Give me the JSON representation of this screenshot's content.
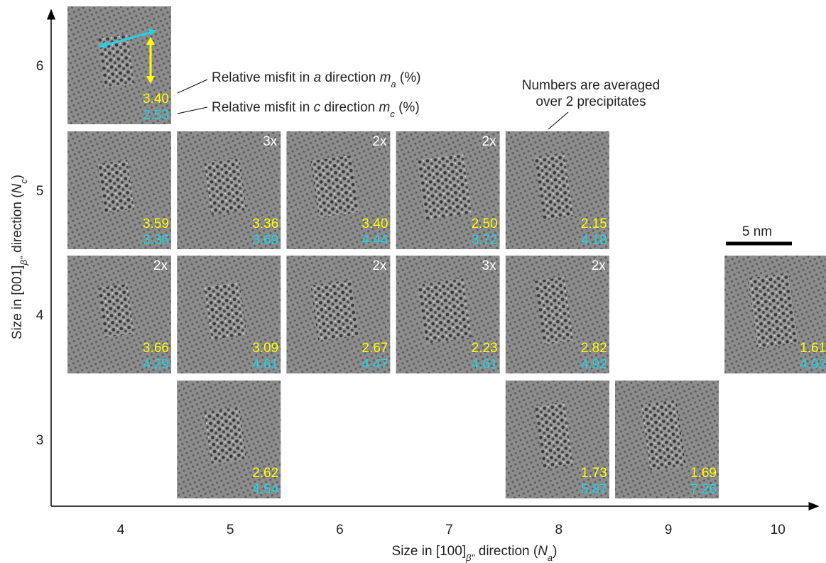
{
  "y_axis": {
    "ticks": [
      "6",
      "5",
      "4",
      "3"
    ],
    "label": {
      "text1": "Size in [001]",
      "sub1": "β''",
      "text2": " direction (",
      "var": "N",
      "sub2": "c",
      "text3": ")"
    }
  },
  "x_axis": {
    "ticks": [
      "4",
      "5",
      "6",
      "7",
      "8",
      "9",
      "10"
    ],
    "label": {
      "text1": "Size in [100]",
      "sub1": "β''",
      "text2": " direction (",
      "var": "N",
      "sub2": "a",
      "text3": ")"
    }
  },
  "grid": {
    "rows": [
      {
        "cells": [
          {
            "m_a": "3.40",
            "m_c": "2.53"
          },
          null,
          null,
          null,
          null,
          null,
          null
        ]
      },
      {
        "cells": [
          {
            "m_a": "3.59",
            "m_c": "3.36"
          },
          {
            "m_a": "3.36",
            "m_c": "3.69",
            "count": "3x"
          },
          {
            "m_a": "3.40",
            "m_c": "4.44",
            "count": "2x"
          },
          {
            "m_a": "2.50",
            "m_c": "3.72",
            "count": "2x"
          },
          {
            "m_a": "2.15",
            "m_c": "4.18"
          },
          null,
          null
        ]
      },
      {
        "cells": [
          {
            "m_a": "3.66",
            "m_c": "4.29",
            "count": "2x"
          },
          {
            "m_a": "3.09",
            "m_c": "4.61"
          },
          {
            "m_a": "2.67",
            "m_c": "4.47",
            "count": "2x"
          },
          {
            "m_a": "2.23",
            "m_c": "4.61",
            "count": "3x"
          },
          {
            "m_a": "2.82",
            "m_c": "4.92",
            "count": "2x"
          },
          null,
          {
            "m_a": "1.61",
            "m_c": "4.92"
          }
        ]
      },
      {
        "cells": [
          null,
          {
            "m_a": "2.62",
            "m_c": "4.54"
          },
          null,
          null,
          {
            "m_a": "1.73",
            "m_c": "5.87"
          },
          {
            "m_a": "1.69",
            "m_c": "7.26"
          },
          null
        ]
      }
    ]
  },
  "annotations": {
    "misfit_a": {
      "text1": "Relative misfit in ",
      "var1": "a",
      "text2": " direction ",
      "var2": "m",
      "sub": "a",
      "text3": " (%)"
    },
    "misfit_c": {
      "text1": "Relative misfit in ",
      "var1": "c",
      "text2": " direction ",
      "var2": "m",
      "sub": "c",
      "text3": " (%)"
    },
    "averaged": [
      "Numbers are averaged",
      "over 2 precipitates"
    ],
    "scale_bar": "5 nm"
  }
}
